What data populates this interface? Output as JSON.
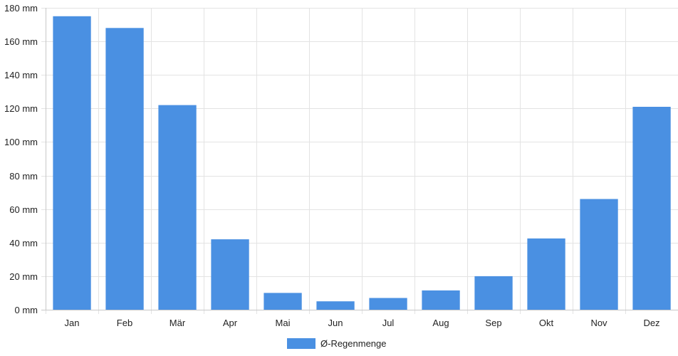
{
  "chart_data": {
    "type": "bar",
    "categories": [
      "Jan",
      "Feb",
      "Mär",
      "Apr",
      "Mai",
      "Jun",
      "Jul",
      "Aug",
      "Sep",
      "Okt",
      "Nov",
      "Dez"
    ],
    "series": [
      {
        "name": "Ø-Regenmenge",
        "values": [
          175,
          168,
          122,
          42,
          10,
          5,
          7,
          11.5,
          20,
          42.5,
          66,
          121
        ],
        "color": "#4a90e2"
      }
    ],
    "y_unit": "mm",
    "ylim": [
      0,
      180
    ],
    "y_ticks": [
      0,
      20,
      40,
      60,
      80,
      100,
      120,
      140,
      160,
      180
    ],
    "y_tick_labels": [
      "0 mm",
      "20 mm",
      "40 mm",
      "60 mm",
      "80 mm",
      "100 mm",
      "120 mm",
      "140 mm",
      "160 mm",
      "180 mm"
    ],
    "grid": true,
    "legend_position": "bottom-center"
  }
}
